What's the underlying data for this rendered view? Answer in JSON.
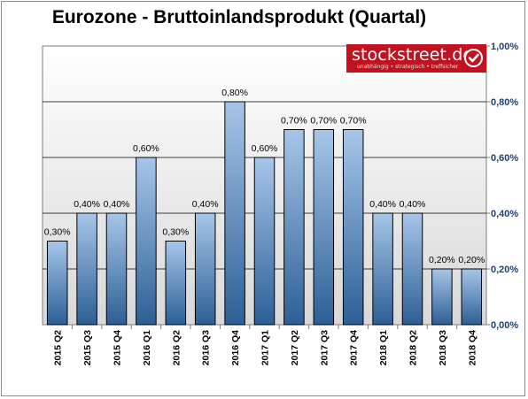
{
  "chart_data": {
    "type": "bar",
    "title": "Eurozone - Bruttoinlandsprodukt (Quartal)",
    "categories": [
      "2015 Q2",
      "2015 Q3",
      "2015 Q4",
      "2016 Q1",
      "2016 Q2",
      "2016 Q3",
      "2016 Q4",
      "2017 Q1",
      "2017 Q2",
      "2017 Q3",
      "2017 Q4",
      "2018 Q1",
      "2018 Q2",
      "2018 Q3",
      "2018 Q4"
    ],
    "values": [
      0.3,
      0.4,
      0.4,
      0.6,
      0.3,
      0.4,
      0.8,
      0.6,
      0.7,
      0.7,
      0.7,
      0.4,
      0.4,
      0.2,
      0.2
    ],
    "data_labels": [
      "0,30%",
      "0,40%",
      "0,40%",
      "0,60%",
      "0,30%",
      "0,40%",
      "0,80%",
      "0,60%",
      "0,70%",
      "0,70%",
      "0,70%",
      "0,40%",
      "0,40%",
      "0,20%",
      "0,20%"
    ],
    "ylim": [
      0,
      1.0
    ],
    "yticks": [
      0,
      0.2,
      0.4,
      0.6,
      0.8,
      1.0
    ],
    "ytick_labels": [
      "0,00%",
      "0,20%",
      "0,40%",
      "0,60%",
      "0,80%",
      "1,00%"
    ],
    "y_axis_position": "right",
    "grid": true,
    "legend": "none",
    "colors": {
      "bar_light": "#a7c6e8",
      "bar_dark": "#2c5f96",
      "bar_border": "#000000",
      "tick_label": "#1f3f6e",
      "plot_gradient_top": "#ffffff",
      "plot_gradient_bottom": "#d8d8d8"
    }
  },
  "logo": {
    "brand": "stockstreet.de",
    "tagline": "unabhängig • strategisch • treffsicher",
    "accent": "#c1121f"
  }
}
